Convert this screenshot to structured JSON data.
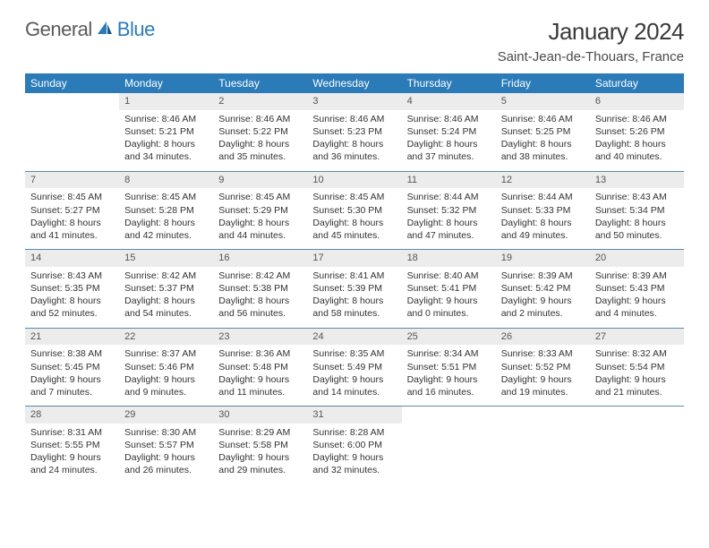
{
  "logo": {
    "text1": "General",
    "text2": "Blue"
  },
  "title": "January 2024",
  "location": "Saint-Jean-de-Thouars, France",
  "colors": {
    "header_bg": "#2b7bb9",
    "header_text": "#ffffff",
    "daynum_bg": "#ececec",
    "row_border": "#5a8aa8",
    "body_text": "#333333"
  },
  "weekdays": [
    "Sunday",
    "Monday",
    "Tuesday",
    "Wednesday",
    "Thursday",
    "Friday",
    "Saturday"
  ],
  "weeks": [
    [
      {
        "day": "",
        "lines": [
          "",
          "",
          "",
          ""
        ]
      },
      {
        "day": "1",
        "lines": [
          "Sunrise: 8:46 AM",
          "Sunset: 5:21 PM",
          "Daylight: 8 hours",
          "and 34 minutes."
        ]
      },
      {
        "day": "2",
        "lines": [
          "Sunrise: 8:46 AM",
          "Sunset: 5:22 PM",
          "Daylight: 8 hours",
          "and 35 minutes."
        ]
      },
      {
        "day": "3",
        "lines": [
          "Sunrise: 8:46 AM",
          "Sunset: 5:23 PM",
          "Daylight: 8 hours",
          "and 36 minutes."
        ]
      },
      {
        "day": "4",
        "lines": [
          "Sunrise: 8:46 AM",
          "Sunset: 5:24 PM",
          "Daylight: 8 hours",
          "and 37 minutes."
        ]
      },
      {
        "day": "5",
        "lines": [
          "Sunrise: 8:46 AM",
          "Sunset: 5:25 PM",
          "Daylight: 8 hours",
          "and 38 minutes."
        ]
      },
      {
        "day": "6",
        "lines": [
          "Sunrise: 8:46 AM",
          "Sunset: 5:26 PM",
          "Daylight: 8 hours",
          "and 40 minutes."
        ]
      }
    ],
    [
      {
        "day": "7",
        "lines": [
          "Sunrise: 8:45 AM",
          "Sunset: 5:27 PM",
          "Daylight: 8 hours",
          "and 41 minutes."
        ]
      },
      {
        "day": "8",
        "lines": [
          "Sunrise: 8:45 AM",
          "Sunset: 5:28 PM",
          "Daylight: 8 hours",
          "and 42 minutes."
        ]
      },
      {
        "day": "9",
        "lines": [
          "Sunrise: 8:45 AM",
          "Sunset: 5:29 PM",
          "Daylight: 8 hours",
          "and 44 minutes."
        ]
      },
      {
        "day": "10",
        "lines": [
          "Sunrise: 8:45 AM",
          "Sunset: 5:30 PM",
          "Daylight: 8 hours",
          "and 45 minutes."
        ]
      },
      {
        "day": "11",
        "lines": [
          "Sunrise: 8:44 AM",
          "Sunset: 5:32 PM",
          "Daylight: 8 hours",
          "and 47 minutes."
        ]
      },
      {
        "day": "12",
        "lines": [
          "Sunrise: 8:44 AM",
          "Sunset: 5:33 PM",
          "Daylight: 8 hours",
          "and 49 minutes."
        ]
      },
      {
        "day": "13",
        "lines": [
          "Sunrise: 8:43 AM",
          "Sunset: 5:34 PM",
          "Daylight: 8 hours",
          "and 50 minutes."
        ]
      }
    ],
    [
      {
        "day": "14",
        "lines": [
          "Sunrise: 8:43 AM",
          "Sunset: 5:35 PM",
          "Daylight: 8 hours",
          "and 52 minutes."
        ]
      },
      {
        "day": "15",
        "lines": [
          "Sunrise: 8:42 AM",
          "Sunset: 5:37 PM",
          "Daylight: 8 hours",
          "and 54 minutes."
        ]
      },
      {
        "day": "16",
        "lines": [
          "Sunrise: 8:42 AM",
          "Sunset: 5:38 PM",
          "Daylight: 8 hours",
          "and 56 minutes."
        ]
      },
      {
        "day": "17",
        "lines": [
          "Sunrise: 8:41 AM",
          "Sunset: 5:39 PM",
          "Daylight: 8 hours",
          "and 58 minutes."
        ]
      },
      {
        "day": "18",
        "lines": [
          "Sunrise: 8:40 AM",
          "Sunset: 5:41 PM",
          "Daylight: 9 hours",
          "and 0 minutes."
        ]
      },
      {
        "day": "19",
        "lines": [
          "Sunrise: 8:39 AM",
          "Sunset: 5:42 PM",
          "Daylight: 9 hours",
          "and 2 minutes."
        ]
      },
      {
        "day": "20",
        "lines": [
          "Sunrise: 8:39 AM",
          "Sunset: 5:43 PM",
          "Daylight: 9 hours",
          "and 4 minutes."
        ]
      }
    ],
    [
      {
        "day": "21",
        "lines": [
          "Sunrise: 8:38 AM",
          "Sunset: 5:45 PM",
          "Daylight: 9 hours",
          "and 7 minutes."
        ]
      },
      {
        "day": "22",
        "lines": [
          "Sunrise: 8:37 AM",
          "Sunset: 5:46 PM",
          "Daylight: 9 hours",
          "and 9 minutes."
        ]
      },
      {
        "day": "23",
        "lines": [
          "Sunrise: 8:36 AM",
          "Sunset: 5:48 PM",
          "Daylight: 9 hours",
          "and 11 minutes."
        ]
      },
      {
        "day": "24",
        "lines": [
          "Sunrise: 8:35 AM",
          "Sunset: 5:49 PM",
          "Daylight: 9 hours",
          "and 14 minutes."
        ]
      },
      {
        "day": "25",
        "lines": [
          "Sunrise: 8:34 AM",
          "Sunset: 5:51 PM",
          "Daylight: 9 hours",
          "and 16 minutes."
        ]
      },
      {
        "day": "26",
        "lines": [
          "Sunrise: 8:33 AM",
          "Sunset: 5:52 PM",
          "Daylight: 9 hours",
          "and 19 minutes."
        ]
      },
      {
        "day": "27",
        "lines": [
          "Sunrise: 8:32 AM",
          "Sunset: 5:54 PM",
          "Daylight: 9 hours",
          "and 21 minutes."
        ]
      }
    ],
    [
      {
        "day": "28",
        "lines": [
          "Sunrise: 8:31 AM",
          "Sunset: 5:55 PM",
          "Daylight: 9 hours",
          "and 24 minutes."
        ]
      },
      {
        "day": "29",
        "lines": [
          "Sunrise: 8:30 AM",
          "Sunset: 5:57 PM",
          "Daylight: 9 hours",
          "and 26 minutes."
        ]
      },
      {
        "day": "30",
        "lines": [
          "Sunrise: 8:29 AM",
          "Sunset: 5:58 PM",
          "Daylight: 9 hours",
          "and 29 minutes."
        ]
      },
      {
        "day": "31",
        "lines": [
          "Sunrise: 8:28 AM",
          "Sunset: 6:00 PM",
          "Daylight: 9 hours",
          "and 32 minutes."
        ]
      },
      {
        "day": "",
        "lines": [
          "",
          "",
          "",
          ""
        ]
      },
      {
        "day": "",
        "lines": [
          "",
          "",
          "",
          ""
        ]
      },
      {
        "day": "",
        "lines": [
          "",
          "",
          "",
          ""
        ]
      }
    ]
  ]
}
